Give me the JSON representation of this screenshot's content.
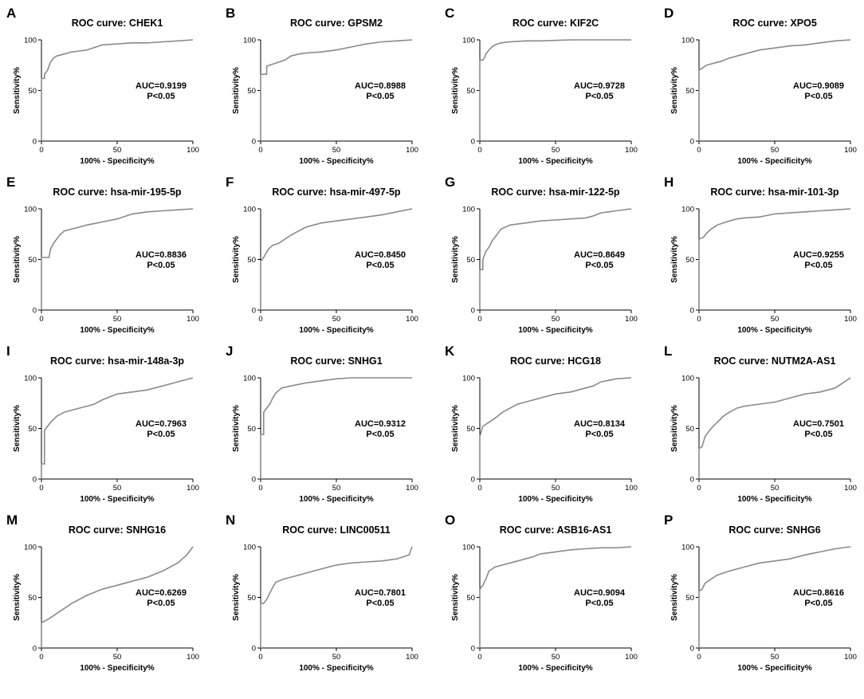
{
  "chart_data": [
    {
      "panel": "A",
      "type": "line",
      "title": "ROC curve: CHEK1",
      "auc": "AUC=0.9199",
      "p": "P<0.05",
      "xlabel": "100% - Specificity%",
      "ylabel": "Sensitivity%",
      "xlim": [
        0,
        100
      ],
      "ylim": [
        0,
        100
      ],
      "xticks": [
        "0",
        "50",
        "100"
      ],
      "yticks": [
        "0",
        "50",
        "100"
      ],
      "series": [
        {
          "name": "ROC",
          "x": [
            0,
            0,
            2,
            2,
            4,
            6,
            8,
            10,
            15,
            20,
            25,
            30,
            40,
            50,
            60,
            70,
            80,
            90,
            100
          ],
          "y": [
            0,
            62,
            62,
            66,
            70,
            78,
            82,
            84,
            86,
            88,
            89,
            90,
            95,
            96,
            97,
            97,
            98,
            99,
            100
          ]
        }
      ]
    },
    {
      "panel": "B",
      "type": "line",
      "title": "ROC curve: GPSM2",
      "auc": "AUC=0.8988",
      "p": "P<0.05",
      "xlabel": "100% - Specificity%",
      "ylabel": "Sensitivity%",
      "xlim": [
        0,
        100
      ],
      "ylim": [
        0,
        100
      ],
      "xticks": [
        "0",
        "50",
        "100"
      ],
      "yticks": [
        "0",
        "50",
        "100"
      ],
      "series": [
        {
          "name": "ROC",
          "x": [
            0,
            0,
            4,
            4,
            8,
            12,
            16,
            20,
            25,
            30,
            40,
            50,
            60,
            70,
            80,
            90,
            100
          ],
          "y": [
            0,
            66,
            66,
            74,
            76,
            78,
            80,
            84,
            86,
            87,
            88,
            90,
            93,
            96,
            98,
            99,
            100
          ]
        }
      ]
    },
    {
      "panel": "C",
      "type": "line",
      "title": "ROC curve: KIF2C",
      "auc": "AUC=0.9728",
      "p": "P<0.05",
      "xlabel": "100% - Specificity%",
      "ylabel": "Sensitivity%",
      "xlim": [
        0,
        100
      ],
      "ylim": [
        0,
        100
      ],
      "xticks": [
        "0",
        "50",
        "100"
      ],
      "yticks": [
        "0",
        "50",
        "100"
      ],
      "series": [
        {
          "name": "ROC",
          "x": [
            0,
            0,
            2,
            3,
            4,
            6,
            8,
            10,
            14,
            20,
            30,
            40,
            60,
            80,
            100
          ],
          "y": [
            0,
            80,
            80,
            82,
            86,
            90,
            93,
            95,
            97,
            98,
            99,
            99,
            100,
            100,
            100
          ]
        }
      ]
    },
    {
      "panel": "D",
      "type": "line",
      "title": "ROC curve: XPO5",
      "auc": "AUC=0.9089",
      "p": "P<0.05",
      "xlabel": "100% - Specificity%",
      "ylabel": "Sensitivity%",
      "xlim": [
        0,
        100
      ],
      "ylim": [
        0,
        100
      ],
      "xticks": [
        "0",
        "50",
        "100"
      ],
      "yticks": [
        "0",
        "50",
        "100"
      ],
      "series": [
        {
          "name": "ROC",
          "x": [
            0,
            0,
            2,
            5,
            10,
            15,
            20,
            25,
            30,
            40,
            50,
            60,
            70,
            80,
            90,
            100
          ],
          "y": [
            0,
            70,
            72,
            75,
            77,
            79,
            82,
            84,
            86,
            90,
            92,
            94,
            95,
            97,
            99,
            100
          ]
        }
      ]
    },
    {
      "panel": "E",
      "type": "line",
      "title": "ROC curve: hsa-mir-195-5p",
      "auc": "AUC=0.8836",
      "p": "P<0.05",
      "xlabel": "100% - Specificity%",
      "ylabel": "Sensitivity%",
      "xlim": [
        0,
        100
      ],
      "ylim": [
        0,
        100
      ],
      "xticks": [
        "0",
        "50",
        "100"
      ],
      "yticks": [
        "0",
        "50",
        "100"
      ],
      "series": [
        {
          "name": "ROC",
          "x": [
            0,
            0,
            5,
            6,
            8,
            10,
            12,
            15,
            20,
            25,
            30,
            40,
            50,
            60,
            70,
            80,
            90,
            100
          ],
          "y": [
            0,
            52,
            52,
            60,
            66,
            70,
            74,
            78,
            80,
            82,
            84,
            87,
            90,
            95,
            97,
            98,
            99,
            100
          ]
        }
      ]
    },
    {
      "panel": "F",
      "type": "line",
      "title": "ROC curve: hsa-mir-497-5p",
      "auc": "AUC=0.8450",
      "p": "P<0.05",
      "xlabel": "100% - Specificity%",
      "ylabel": "Sensitivity%",
      "xlim": [
        0,
        100
      ],
      "ylim": [
        0,
        100
      ],
      "xticks": [
        "0",
        "50",
        "100"
      ],
      "yticks": [
        "0",
        "50",
        "100"
      ],
      "series": [
        {
          "name": "ROC",
          "x": [
            0,
            0,
            2,
            5,
            8,
            12,
            16,
            20,
            25,
            30,
            40,
            50,
            60,
            70,
            80,
            90,
            100
          ],
          "y": [
            0,
            48,
            52,
            60,
            64,
            66,
            70,
            74,
            78,
            82,
            86,
            88,
            90,
            92,
            94,
            97,
            100
          ]
        }
      ]
    },
    {
      "panel": "G",
      "type": "line",
      "title": "ROC curve: hsa-mir-122-5p",
      "auc": "AUC=0.8649",
      "p": "P<0.05",
      "xlabel": "100% - Specificity%",
      "ylabel": "Sensitivity%",
      "xlim": [
        0,
        100
      ],
      "ylim": [
        0,
        100
      ],
      "xticks": [
        "0",
        "50",
        "100"
      ],
      "yticks": [
        "0",
        "50",
        "100"
      ],
      "series": [
        {
          "name": "ROC",
          "x": [
            0,
            0,
            2,
            2,
            4,
            6,
            8,
            10,
            14,
            20,
            30,
            40,
            50,
            60,
            70,
            75,
            80,
            90,
            100
          ],
          "y": [
            0,
            40,
            40,
            50,
            58,
            62,
            68,
            72,
            80,
            84,
            86,
            88,
            89,
            90,
            91,
            93,
            96,
            98,
            100
          ]
        }
      ]
    },
    {
      "panel": "H",
      "type": "line",
      "title": "ROC curve: hsa-mir-101-3p",
      "auc": "AUC=0.9255",
      "p": "P<0.05",
      "xlabel": "100% - Specificity%",
      "ylabel": "Sensitivity%",
      "xlim": [
        0,
        100
      ],
      "ylim": [
        0,
        100
      ],
      "xticks": [
        "0",
        "50",
        "100"
      ],
      "yticks": [
        "0",
        "50",
        "100"
      ],
      "series": [
        {
          "name": "ROC",
          "x": [
            0,
            0,
            3,
            5,
            8,
            12,
            16,
            20,
            25,
            30,
            40,
            50,
            60,
            70,
            80,
            90,
            100
          ],
          "y": [
            0,
            70,
            72,
            76,
            80,
            84,
            86,
            88,
            90,
            91,
            92,
            95,
            96,
            97,
            98,
            99,
            100
          ]
        }
      ]
    },
    {
      "panel": "I",
      "type": "line",
      "title": "ROC curve: hsa-mir-148a-3p",
      "auc": "AUC=0.7963",
      "p": "P<0.05",
      "xlabel": "100% - Specificity%",
      "ylabel": "Sensitivity%",
      "xlim": [
        0,
        100
      ],
      "ylim": [
        0,
        100
      ],
      "xticks": [
        "0",
        "50",
        "100"
      ],
      "yticks": [
        "0",
        "50",
        "100"
      ],
      "series": [
        {
          "name": "ROC",
          "x": [
            0,
            0,
            2,
            2,
            4,
            6,
            10,
            15,
            20,
            25,
            30,
            35,
            40,
            50,
            60,
            70,
            80,
            90,
            100
          ],
          "y": [
            0,
            15,
            15,
            48,
            52,
            56,
            62,
            66,
            68,
            70,
            72,
            74,
            78,
            84,
            86,
            88,
            92,
            96,
            100
          ]
        }
      ]
    },
    {
      "panel": "J",
      "type": "line",
      "title": "ROC curve: SNHG1",
      "auc": "AUC=0.9312",
      "p": "P<0.05",
      "xlabel": "100% - Specificity%",
      "ylabel": "Sensitivity%",
      "xlim": [
        0,
        100
      ],
      "ylim": [
        0,
        100
      ],
      "xticks": [
        "0",
        "50",
        "100"
      ],
      "yticks": [
        "0",
        "50",
        "100"
      ],
      "series": [
        {
          "name": "ROC",
          "x": [
            0,
            0,
            2,
            2,
            4,
            6,
            8,
            10,
            14,
            20,
            30,
            40,
            50,
            60,
            70,
            80,
            90,
            100
          ],
          "y": [
            0,
            44,
            44,
            66,
            70,
            74,
            80,
            85,
            90,
            92,
            95,
            97,
            99,
            100,
            100,
            100,
            100,
            100
          ]
        }
      ]
    },
    {
      "panel": "K",
      "type": "line",
      "title": "ROC curve: HCG18",
      "auc": "AUC=0.8134",
      "p": "P<0.05",
      "xlabel": "100% - Specificity%",
      "ylabel": "Sensitivity%",
      "xlim": [
        0,
        100
      ],
      "ylim": [
        0,
        100
      ],
      "xticks": [
        "0",
        "50",
        "100"
      ],
      "yticks": [
        "0",
        "50",
        "100"
      ],
      "series": [
        {
          "name": "ROC",
          "x": [
            0,
            0,
            2,
            4,
            6,
            10,
            15,
            20,
            25,
            30,
            40,
            50,
            60,
            70,
            75,
            80,
            90,
            100
          ],
          "y": [
            0,
            42,
            52,
            54,
            56,
            60,
            66,
            70,
            74,
            76,
            80,
            84,
            86,
            90,
            92,
            96,
            99,
            100
          ]
        }
      ]
    },
    {
      "panel": "L",
      "type": "line",
      "title": "ROC curve: NUTM2A-AS1",
      "auc": "AUC=0.7501",
      "p": "P<0.05",
      "xlabel": "100% - Specificity%",
      "ylabel": "Sensitivity%",
      "xlim": [
        0,
        100
      ],
      "ylim": [
        0,
        100
      ],
      "xticks": [
        "0",
        "50",
        "100"
      ],
      "yticks": [
        "0",
        "50",
        "100"
      ],
      "series": [
        {
          "name": "ROC",
          "x": [
            0,
            0,
            2,
            4,
            8,
            12,
            16,
            20,
            25,
            30,
            40,
            50,
            60,
            70,
            80,
            90,
            95,
            100
          ],
          "y": [
            0,
            30,
            32,
            42,
            50,
            56,
            62,
            66,
            70,
            72,
            74,
            76,
            80,
            84,
            86,
            90,
            95,
            100
          ]
        }
      ]
    },
    {
      "panel": "M",
      "type": "line",
      "title": "ROC curve: SNHG16",
      "auc": "AUC=0.6269",
      "p": "P<0.05",
      "xlabel": "100% - Specificity%",
      "ylabel": "Sensitivity%",
      "xlim": [
        0,
        100
      ],
      "ylim": [
        0,
        100
      ],
      "xticks": [
        "0",
        "50",
        "100"
      ],
      "yticks": [
        "0",
        "50",
        "100"
      ],
      "series": [
        {
          "name": "ROC",
          "x": [
            0,
            0,
            4,
            8,
            12,
            16,
            20,
            25,
            30,
            35,
            40,
            45,
            50,
            60,
            70,
            80,
            90,
            96,
            100
          ],
          "y": [
            0,
            25,
            28,
            32,
            36,
            40,
            44,
            48,
            52,
            55,
            58,
            60,
            62,
            66,
            70,
            76,
            84,
            92,
            100
          ]
        }
      ]
    },
    {
      "panel": "N",
      "type": "line",
      "title": "ROC curve: LINC00511",
      "auc": "AUC=0.7801",
      "p": "P<0.05",
      "xlabel": "100% - Specificity%",
      "ylabel": "Sensitivity%",
      "xlim": [
        0,
        100
      ],
      "ylim": [
        0,
        100
      ],
      "xticks": [
        "0",
        "50",
        "100"
      ],
      "yticks": [
        "0",
        "50",
        "100"
      ],
      "series": [
        {
          "name": "ROC",
          "x": [
            0,
            0,
            2,
            4,
            6,
            8,
            10,
            15,
            20,
            25,
            30,
            40,
            50,
            60,
            70,
            80,
            90,
            98,
            100
          ],
          "y": [
            0,
            44,
            44,
            48,
            54,
            60,
            65,
            68,
            70,
            72,
            74,
            78,
            82,
            84,
            85,
            86,
            88,
            92,
            100
          ]
        }
      ]
    },
    {
      "panel": "O",
      "type": "line",
      "title": "ROC curve: ASB16-AS1",
      "auc": "AUC=0.9094",
      "p": "P<0.05",
      "xlabel": "100% - Specificity%",
      "ylabel": "Sensitivity%",
      "xlim": [
        0,
        100
      ],
      "ylim": [
        0,
        100
      ],
      "xticks": [
        "0",
        "50",
        "100"
      ],
      "yticks": [
        "0",
        "50",
        "100"
      ],
      "series": [
        {
          "name": "ROC",
          "x": [
            0,
            0,
            2,
            4,
            6,
            10,
            15,
            20,
            25,
            30,
            35,
            40,
            50,
            60,
            70,
            80,
            90,
            100
          ],
          "y": [
            0,
            58,
            62,
            68,
            76,
            80,
            82,
            84,
            86,
            88,
            90,
            93,
            95,
            97,
            98,
            99,
            99,
            100
          ]
        }
      ]
    },
    {
      "panel": "P",
      "type": "line",
      "title": "ROC curve: SNHG6",
      "auc": "AUC=0.8616",
      "p": "P<0.05",
      "xlabel": "100% - Specificity%",
      "ylabel": "Sensitivity%",
      "xlim": [
        0,
        100
      ],
      "ylim": [
        0,
        100
      ],
      "xticks": [
        "0",
        "50",
        "100"
      ],
      "yticks": [
        "0",
        "50",
        "100"
      ],
      "series": [
        {
          "name": "ROC",
          "x": [
            0,
            0,
            2,
            4,
            8,
            12,
            16,
            20,
            25,
            30,
            40,
            50,
            60,
            70,
            80,
            90,
            100
          ],
          "y": [
            0,
            56,
            58,
            64,
            68,
            72,
            74,
            76,
            78,
            80,
            84,
            86,
            88,
            92,
            95,
            98,
            100
          ]
        }
      ]
    }
  ]
}
